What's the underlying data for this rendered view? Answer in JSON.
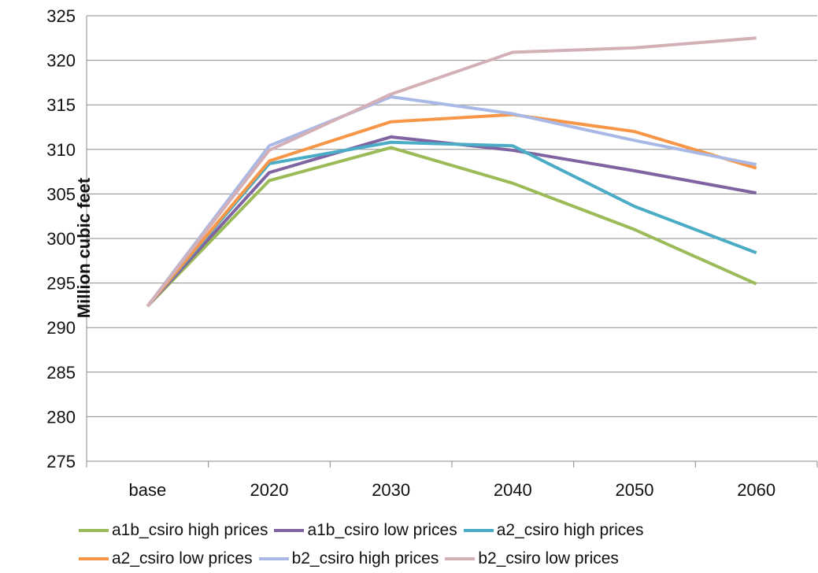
{
  "chart_data": {
    "type": "line",
    "title": "",
    "xlabel": "",
    "ylabel": "Million cubic feet",
    "categories": [
      "base",
      "2020",
      "2030",
      "2040",
      "2050",
      "2060"
    ],
    "ylim": [
      275,
      325
    ],
    "yticks": [
      275,
      280,
      285,
      290,
      295,
      300,
      305,
      310,
      315,
      320,
      325
    ],
    "grid": true,
    "legend_position": "bottom",
    "series": [
      {
        "name": "a1b_csiro high prices",
        "color": "#9bbb59",
        "values": [
          292.4,
          306.5,
          310.2,
          306.2,
          301.0,
          294.9
        ]
      },
      {
        "name": "a1b_csiro low prices",
        "color": "#8064a2",
        "values": [
          292.4,
          307.4,
          311.4,
          309.9,
          307.6,
          305.1
        ]
      },
      {
        "name": "a2_csiro high prices",
        "color": "#4bacc6",
        "values": [
          292.4,
          308.4,
          310.8,
          310.4,
          303.6,
          298.4
        ]
      },
      {
        "name": "a2_csiro low prices",
        "color": "#f79646",
        "values": [
          292.4,
          308.7,
          313.1,
          313.9,
          312.0,
          307.9
        ]
      },
      {
        "name": "b2_csiro high prices",
        "color": "#a9b9e6",
        "values": [
          292.4,
          310.4,
          315.9,
          314.0,
          311.0,
          308.3
        ]
      },
      {
        "name": "b2_csiro low prices",
        "color": "#d3b0b6",
        "values": [
          292.4,
          309.9,
          316.2,
          320.9,
          321.4,
          322.5
        ]
      }
    ]
  }
}
